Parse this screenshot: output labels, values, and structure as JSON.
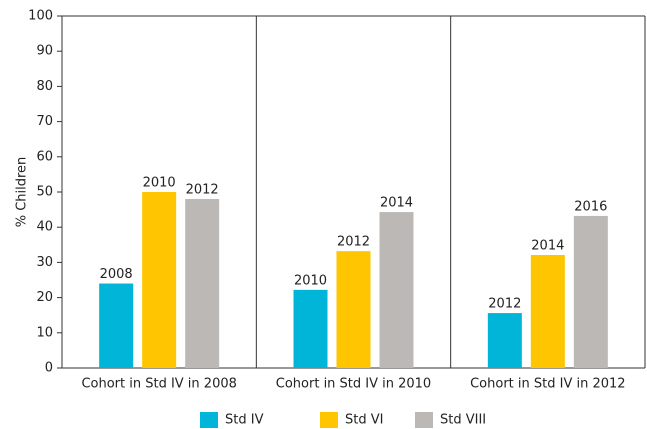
{
  "chart_data": {
    "type": "bar",
    "ylabel": "% Children",
    "categories": [
      "Cohort in Std IV in 2008",
      "Cohort in Std IV in 2010",
      "Cohort in Std IV in 2012"
    ],
    "series": [
      {
        "name": "Std IV",
        "color": "#00b5d8",
        "values": [
          24,
          22.2,
          15.6
        ],
        "bar_labels": [
          "2008",
          "2010",
          "2012"
        ]
      },
      {
        "name": "Std VI",
        "color": "#ffc600",
        "values": [
          50,
          33.2,
          32.1
        ],
        "bar_labels": [
          "2010",
          "2012",
          "2014"
        ]
      },
      {
        "name": "Std VIII",
        "color": "#bcb8b5",
        "values": [
          48,
          44.3,
          43.2
        ],
        "bar_labels": [
          "2012",
          "2014",
          "2016"
        ]
      }
    ],
    "ylim": [
      0,
      100
    ],
    "yticks": [
      0,
      10,
      20,
      30,
      40,
      50,
      60,
      70,
      80,
      90,
      100
    ],
    "grid": false
  }
}
